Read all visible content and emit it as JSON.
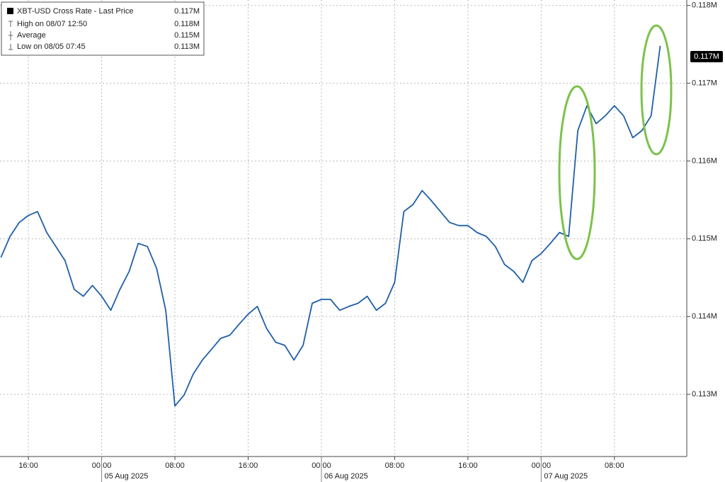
{
  "chart_data": {
    "type": "line",
    "x": [
      13,
      14,
      15,
      16,
      17,
      18,
      19,
      20,
      21,
      22,
      23,
      24,
      25,
      26,
      27,
      28,
      29,
      30,
      31,
      32,
      33,
      34,
      35,
      36,
      37,
      38,
      39,
      40,
      41,
      42,
      43,
      44,
      45,
      46,
      47,
      48,
      49,
      50,
      51,
      52,
      53,
      54,
      55,
      56,
      57,
      58,
      59,
      60,
      61,
      62,
      63,
      64,
      65,
      66,
      67,
      68,
      69,
      70,
      71,
      72,
      73,
      74,
      75,
      76,
      77,
      78,
      79,
      80,
      81,
      82,
      83,
      84,
      85
    ],
    "series": [
      {
        "name": "XBT-USD Cross Rate - Last Price",
        "color": "#1f5fa8",
        "values": [
          0.11476,
          0.11503,
          0.11521,
          0.1153,
          0.11535,
          0.11508,
          0.1149,
          0.11472,
          0.11435,
          0.11426,
          0.1144,
          0.11426,
          0.11408,
          0.11435,
          0.11458,
          0.11494,
          0.1149,
          0.11462,
          0.11408,
          0.11285,
          0.11299,
          0.11326,
          0.11344,
          0.11358,
          0.11372,
          0.11376,
          0.1139,
          0.11403,
          0.11413,
          0.11385,
          0.11367,
          0.11363,
          0.11344,
          0.11363,
          0.11417,
          0.11422,
          0.11422,
          0.11408,
          0.11413,
          0.11417,
          0.11426,
          0.11408,
          0.11417,
          0.11444,
          0.11535,
          0.11544,
          0.11562,
          0.11549,
          0.11535,
          0.11521,
          0.11517,
          0.11517,
          0.11508,
          0.11503,
          0.1149,
          0.11467,
          0.11458,
          0.11444,
          0.11472,
          0.11481,
          0.11494,
          0.11508,
          0.11503,
          0.11639,
          0.11671,
          0.11648,
          0.11658,
          0.11671,
          0.11658,
          0.1163,
          0.11639,
          0.11658,
          0.11748
        ]
      }
    ],
    "xlim": [
      12.9,
      87.9
    ],
    "ylim": [
      0.1122,
      0.11807
    ],
    "xticks": [
      {
        "value": 16,
        "label": "16:00"
      },
      {
        "value": 24,
        "label": "00:00"
      },
      {
        "value": 32,
        "label": "08:00"
      },
      {
        "value": 40,
        "label": "16:00"
      },
      {
        "value": 48,
        "label": "00:00"
      },
      {
        "value": 56,
        "label": "08:00"
      },
      {
        "value": 64,
        "label": "16:00"
      },
      {
        "value": 72,
        "label": "00:00"
      },
      {
        "value": 80,
        "label": "08:00"
      }
    ],
    "xdates": [
      {
        "value": 24,
        "label": "05 Aug 2025"
      },
      {
        "value": 48,
        "label": "06 Aug 2025"
      },
      {
        "value": 72,
        "label": "07 Aug 2025"
      }
    ],
    "yticks": [
      {
        "value": 0.113,
        "label": "0.113M"
      },
      {
        "value": 0.114,
        "label": "0.114M"
      },
      {
        "value": 0.115,
        "label": "0.115M"
      },
      {
        "value": 0.116,
        "label": "0.116M"
      },
      {
        "value": 0.117,
        "label": "0.117M"
      },
      {
        "value": 0.118,
        "label": "0.118M"
      }
    ],
    "grid": true,
    "legend": {
      "title_value": "0.117M",
      "rows": [
        {
          "label": "High on 08/07 12:50",
          "value": "0.118M"
        },
        {
          "label": "Average",
          "value": "0.115M"
        },
        {
          "label": "Low on 08/05 07:45",
          "value": "0.113M"
        }
      ]
    },
    "last_price_label": "0.117M"
  }
}
